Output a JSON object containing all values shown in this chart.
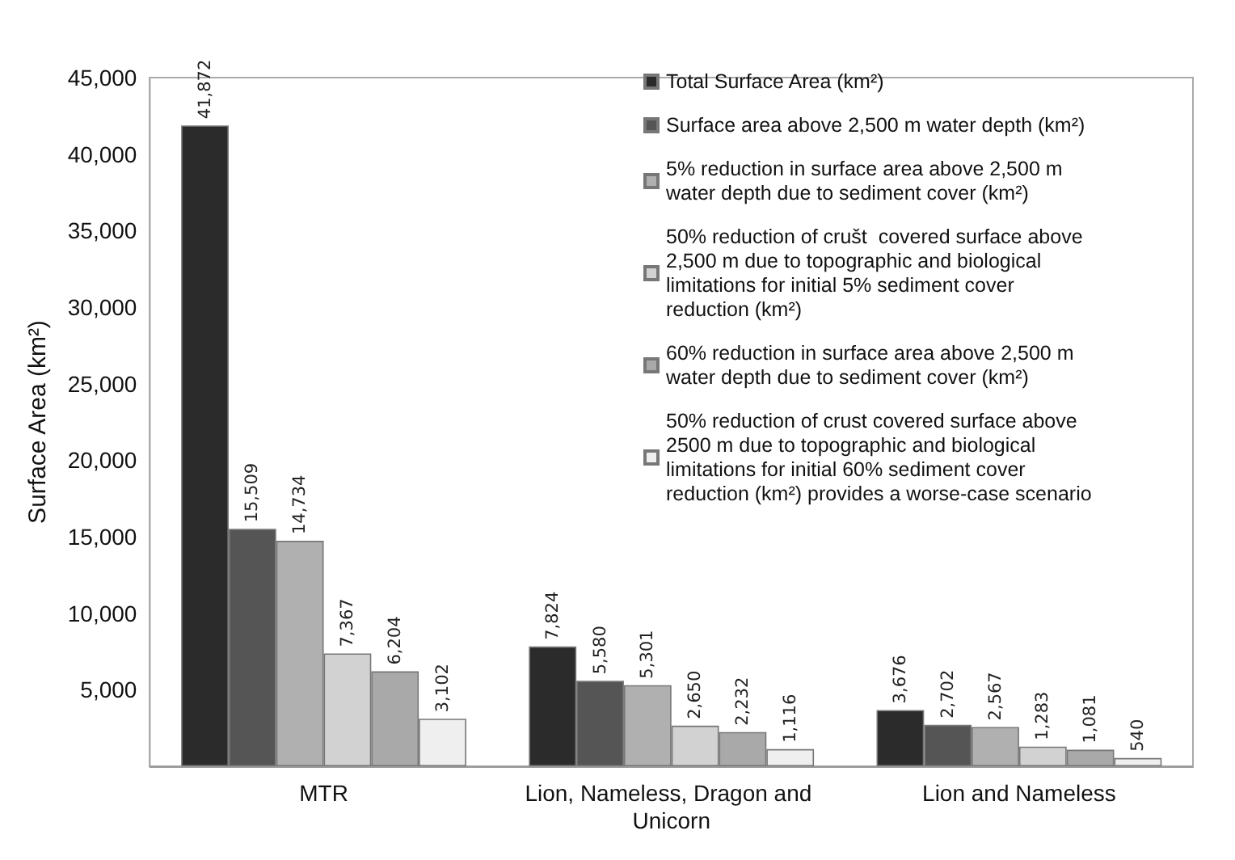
{
  "chart_data": {
    "type": "bar",
    "ylabel": "Surface Area (km²)",
    "categories": [
      "MTR",
      "Lion, Nameless, Dragon and Unicorn",
      "Lion and Nameless"
    ],
    "series": [
      {
        "name": "Total Surface Area (km²)",
        "color": "#2b2b2b",
        "values": [
          41872,
          7824,
          3676
        ],
        "value_labels": [
          "41,872",
          "7,824",
          "3,676"
        ]
      },
      {
        "name": "Surface area above 2,500 m water depth (km²)",
        "color": "#555555",
        "values": [
          15509,
          5580,
          2702
        ],
        "value_labels": [
          "15,509",
          "5,580",
          "2,702"
        ]
      },
      {
        "name": "5% reduction in surface area above 2,500 m water depth due to sediment cover (km²)",
        "color": "#b0b0b0",
        "values": [
          14734,
          5301,
          2567
        ],
        "value_labels": [
          "14,734",
          "5,301",
          "2,567"
        ]
      },
      {
        "name": "50% reduction of crušt  covered surface above 2,500 m due to topographic and biological limitations for initial 5% sediment cover reduction (km²)",
        "color": "#d2d2d2",
        "values": [
          7367,
          2650,
          1283
        ],
        "value_labels": [
          "7,367",
          "2,650",
          "1,283"
        ]
      },
      {
        "name": "60% reduction in surface area above 2,500 m water depth due to sediment cover (km²)",
        "color": "#a9a9a9",
        "values": [
          6204,
          2232,
          1081
        ],
        "value_labels": [
          "6,204",
          "2,232",
          "1,081"
        ]
      },
      {
        "name": "50% reduction of crust covered surface above 2500 m due to topographic and biological limitations for initial 60% sediment cover reduction (km²) provides a worse-case scenario",
        "color": "#efefef",
        "values": [
          3102,
          1116,
          540
        ],
        "value_labels": [
          "3,102",
          "1,116",
          "540"
        ]
      }
    ],
    "ylim": [
      0,
      45000
    ],
    "yticks": [
      "5,000",
      "10,000",
      "15,000",
      "20,000",
      "25,000",
      "30,000",
      "35,000",
      "40,000",
      "45,000"
    ],
    "grid": false,
    "legend": "top right"
  }
}
